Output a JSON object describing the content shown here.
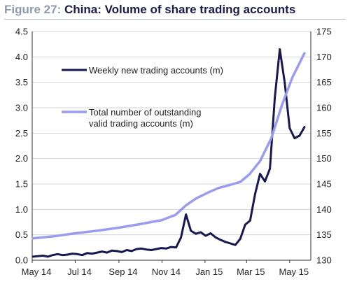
{
  "header": {
    "figure_label": "Figure 27:",
    "title": "China: Volume of share trading accounts"
  },
  "chart_data": {
    "type": "line",
    "title": "China: Volume of share trading accounts",
    "x_tick_labels": [
      "May 14",
      "Jul 14",
      "Sep 14",
      "Nov 14",
      "Jan 15",
      "Mar 15",
      "May 15"
    ],
    "y_left": {
      "ylim": [
        0.0,
        4.5
      ],
      "ticks": [
        "0.0",
        "0.5",
        "1.0",
        "1.5",
        "2.0",
        "2.5",
        "3.0",
        "3.5",
        "4.0",
        "4.5"
      ]
    },
    "y_right": {
      "ylim": [
        130,
        175
      ],
      "ticks": [
        "130",
        "135",
        "140",
        "145",
        "150",
        "155",
        "160",
        "165",
        "170",
        "175"
      ]
    },
    "grid": "horizontal",
    "legend_placement": "upper-left",
    "series": [
      {
        "name": "Weekly new trading accounts (m)",
        "axis": "left",
        "color": "#171752",
        "x": [
          "2014-05-02",
          "2014-05-09",
          "2014-05-16",
          "2014-05-23",
          "2014-05-30",
          "2014-06-06",
          "2014-06-13",
          "2014-06-20",
          "2014-06-27",
          "2014-07-04",
          "2014-07-11",
          "2014-07-18",
          "2014-07-25",
          "2014-08-01",
          "2014-08-08",
          "2014-08-15",
          "2014-08-22",
          "2014-08-29",
          "2014-09-05",
          "2014-09-12",
          "2014-09-19",
          "2014-09-26",
          "2014-10-03",
          "2014-10-10",
          "2014-10-17",
          "2014-10-24",
          "2014-10-31",
          "2014-11-07",
          "2014-11-14",
          "2014-11-21",
          "2014-11-28",
          "2014-12-05",
          "2014-12-12",
          "2014-12-19",
          "2014-12-26",
          "2015-01-02",
          "2015-01-09",
          "2015-01-16",
          "2015-01-23",
          "2015-01-30",
          "2015-02-06",
          "2015-02-13",
          "2015-02-20",
          "2015-02-27",
          "2015-03-06",
          "2015-03-13",
          "2015-03-20",
          "2015-03-27",
          "2015-04-03",
          "2015-04-10",
          "2015-04-17",
          "2015-04-24",
          "2015-05-01",
          "2015-05-08",
          "2015-05-15",
          "2015-05-22"
        ],
        "values": [
          0.07,
          0.08,
          0.09,
          0.07,
          0.1,
          0.12,
          0.1,
          0.11,
          0.13,
          0.12,
          0.1,
          0.14,
          0.13,
          0.15,
          0.17,
          0.15,
          0.19,
          0.18,
          0.16,
          0.2,
          0.18,
          0.22,
          0.23,
          0.21,
          0.2,
          0.22,
          0.24,
          0.23,
          0.26,
          0.25,
          0.45,
          0.9,
          0.58,
          0.52,
          0.55,
          0.48,
          0.53,
          0.45,
          0.4,
          0.36,
          0.33,
          0.3,
          0.42,
          0.7,
          0.78,
          1.3,
          1.7,
          1.55,
          1.8,
          3.2,
          4.15,
          3.5,
          2.6,
          2.4,
          2.45,
          2.62
        ]
      },
      {
        "name": "Total number of outstanding valid trading accounts (m)",
        "axis": "right",
        "color": "#9b9bef",
        "x": [
          "2014-05-02",
          "2014-06-01",
          "2014-07-01",
          "2014-08-01",
          "2014-09-01",
          "2014-10-01",
          "2014-11-01",
          "2014-11-20",
          "2014-12-05",
          "2014-12-20",
          "2015-01-05",
          "2015-01-20",
          "2015-02-05",
          "2015-02-20",
          "2015-03-05",
          "2015-03-20",
          "2015-04-05",
          "2015-04-20",
          "2015-05-05",
          "2015-05-22"
        ],
        "values": [
          134.3,
          134.7,
          135.3,
          135.8,
          136.4,
          137.1,
          137.9,
          138.9,
          140.8,
          142.2,
          143.3,
          144.2,
          144.8,
          145.4,
          146.9,
          149.5,
          154.0,
          160.5,
          166.0,
          170.7
        ]
      }
    ]
  }
}
